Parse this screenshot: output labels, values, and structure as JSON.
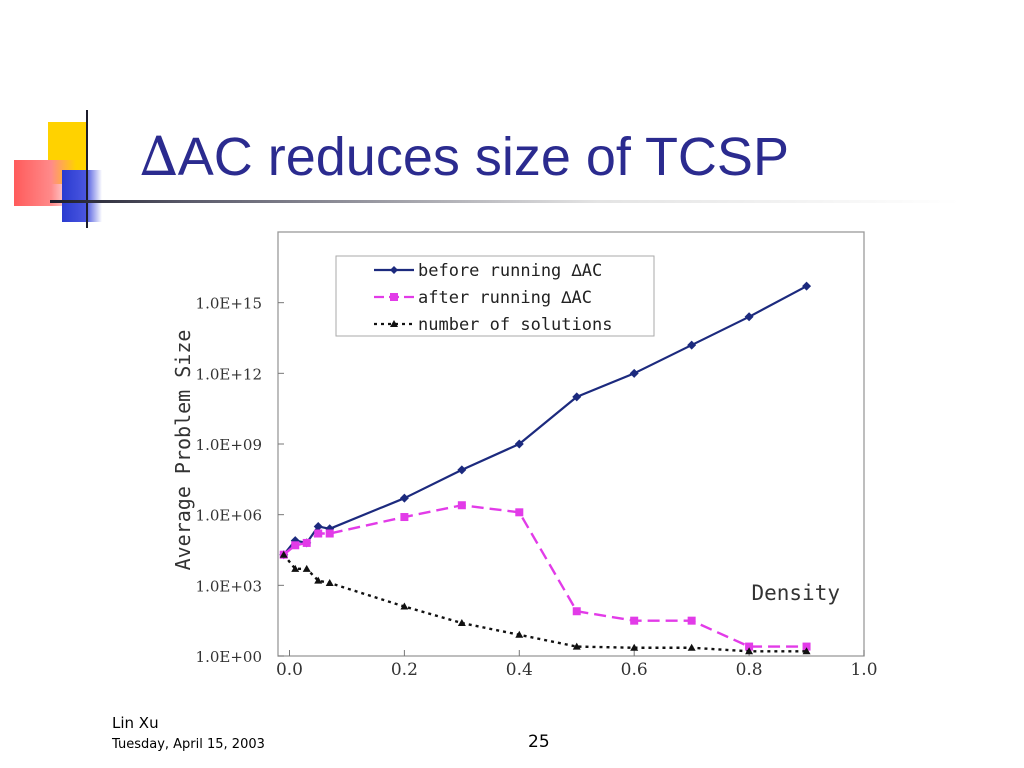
{
  "slide": {
    "title_delta": "∆",
    "title_text": "AC reduces size of TCSP",
    "author": "Lin Xu",
    "date": "Tuesday, April 15, 2003",
    "page_number": "25"
  },
  "chart_data": {
    "type": "line",
    "title": "",
    "xlabel": "Density",
    "ylabel": "Average Problem Size",
    "y_scale": "log10",
    "xlim": [
      -0.02,
      1.0
    ],
    "ylim_log10": [
      0,
      18
    ],
    "x_ticks": [
      0.0,
      0.2,
      0.4,
      0.6,
      0.8,
      1.0
    ],
    "x_tick_labels": [
      "0.0",
      "0.2",
      "0.4",
      "0.6",
      "0.8",
      "1.0"
    ],
    "y_ticks_log10": [
      0,
      3,
      6,
      9,
      12,
      15
    ],
    "y_tick_labels": [
      "1.0E+00",
      "1.0E+03",
      "1.0E+06",
      "1.0E+09",
      "1.0E+12",
      "1.0E+15"
    ],
    "legend_position": "top",
    "series": [
      {
        "name": "before running ∆AC",
        "color": "#1c2a7e",
        "line_style": "solid",
        "marker": "diamond",
        "x": [
          -0.01,
          0.01,
          0.03,
          0.05,
          0.07,
          0.2,
          0.3,
          0.4,
          0.5,
          0.6,
          0.7,
          0.8,
          0.9
        ],
        "y_log10": [
          4.3,
          4.9,
          4.8,
          5.5,
          5.4,
          6.7,
          7.9,
          9.0,
          11.0,
          12.0,
          13.2,
          14.4,
          15.7
        ]
      },
      {
        "name": "after running ∆AC",
        "color": "#e23be8",
        "line_style": "dashed",
        "marker": "square",
        "x": [
          -0.01,
          0.01,
          0.03,
          0.05,
          0.07,
          0.2,
          0.3,
          0.4,
          0.5,
          0.6,
          0.7,
          0.8,
          0.9
        ],
        "y_log10": [
          4.3,
          4.7,
          4.8,
          5.2,
          5.2,
          5.9,
          6.4,
          6.1,
          1.9,
          1.5,
          1.5,
          0.4,
          0.4
        ]
      },
      {
        "name": "number of solutions",
        "color": "#111111",
        "line_style": "dotted",
        "marker": "triangle",
        "x": [
          -0.01,
          0.01,
          0.03,
          0.05,
          0.07,
          0.2,
          0.3,
          0.4,
          0.5,
          0.6,
          0.7,
          0.8,
          0.9
        ],
        "y_log10": [
          4.3,
          3.7,
          3.7,
          3.2,
          3.1,
          2.1,
          1.4,
          0.9,
          0.4,
          0.35,
          0.35,
          0.2,
          0.2
        ]
      }
    ]
  }
}
